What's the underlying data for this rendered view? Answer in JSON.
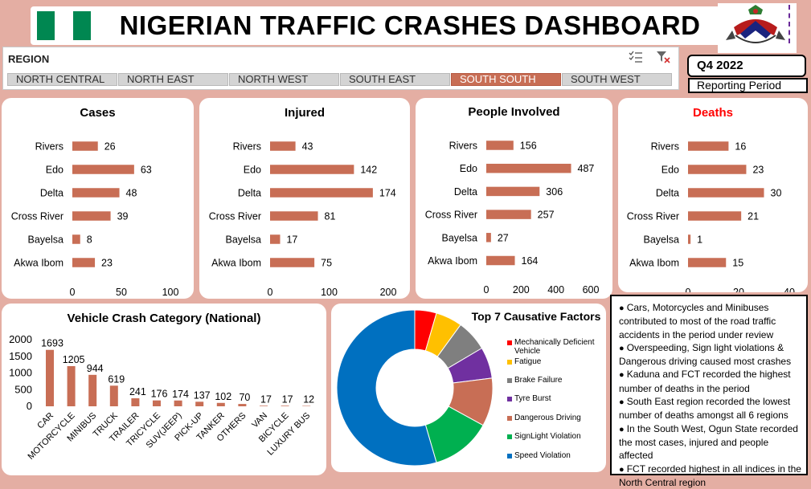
{
  "header": {
    "title": "NIGERIAN TRAFFIC CRASHES DASHBOARD",
    "flag_colors": [
      "#008751",
      "#ffffff",
      "#008751"
    ]
  },
  "slicer": {
    "title": "REGION",
    "icons": [
      "multi-select-icon",
      "clear-filter-icon"
    ],
    "regions": [
      {
        "label": "NORTH CENTRAL",
        "selected": false
      },
      {
        "label": "NORTH EAST",
        "selected": false
      },
      {
        "label": "NORTH WEST",
        "selected": false
      },
      {
        "label": "SOUTH EAST",
        "selected": false
      },
      {
        "label": "SOUTH SOUTH",
        "selected": true
      },
      {
        "label": "SOUTH WEST",
        "selected": false
      }
    ]
  },
  "period": {
    "quarter": "Q4 2022",
    "label": "Reporting Period"
  },
  "colors": {
    "bar": "#c86e55",
    "accent": "#c86e55",
    "deaths_title": "#ff0000"
  },
  "chart_data": [
    {
      "type": "bar",
      "orientation": "horizontal",
      "title": "Cases",
      "categories": [
        "Rivers",
        "Edo",
        "Delta",
        "Cross River",
        "Bayelsa",
        "Akwa Ibom"
      ],
      "values": [
        26,
        63,
        48,
        39,
        8,
        23
      ],
      "xlim": [
        0,
        100
      ],
      "ticks": [
        0,
        50,
        100
      ]
    },
    {
      "type": "bar",
      "orientation": "horizontal",
      "title": "Injured",
      "categories": [
        "Rivers",
        "Edo",
        "Delta",
        "Cross River",
        "Bayelsa",
        "Akwa Ibom"
      ],
      "values": [
        43,
        142,
        174,
        81,
        17,
        75
      ],
      "xlim": [
        0,
        200
      ],
      "ticks": [
        0,
        100,
        200
      ]
    },
    {
      "type": "bar",
      "orientation": "horizontal",
      "title": "People Involved",
      "categories": [
        "Rivers",
        "Edo",
        "Delta",
        "Cross River",
        "Bayelsa",
        "Akwa Ibom"
      ],
      "values": [
        156,
        487,
        306,
        257,
        27,
        164
      ],
      "xlim": [
        0,
        600
      ],
      "ticks": [
        0,
        200,
        400,
        600
      ]
    },
    {
      "type": "bar",
      "orientation": "horizontal",
      "title": "Deaths",
      "categories": [
        "Rivers",
        "Edo",
        "Delta",
        "Cross River",
        "Bayelsa",
        "Akwa Ibom"
      ],
      "values": [
        16,
        23,
        30,
        21,
        1,
        15
      ],
      "xlim": [
        0,
        40
      ],
      "ticks": [
        0,
        20,
        40
      ]
    },
    {
      "type": "bar",
      "orientation": "vertical",
      "title": "Vehicle Crash Category (National)",
      "categories": [
        "CAR",
        "MOTORCYCLE",
        "MINIBUS",
        "TRUCK",
        "TRAILER",
        "TRICYCLE",
        "SUV(JEEP)",
        "PICK-UP",
        "TANKER",
        "OTHERS",
        "VAN",
        "BICYCLE",
        "LUXURY BUS"
      ],
      "values": [
        1693,
        1205,
        944,
        619,
        241,
        176,
        174,
        137,
        102,
        70,
        17,
        17,
        12
      ],
      "ylim": [
        0,
        2000
      ],
      "ticks": [
        0,
        500,
        1000,
        1500,
        2000
      ]
    },
    {
      "type": "pie",
      "donut": true,
      "title": "Top 7 Causative Factors",
      "labels": [
        "Mechanically Deficient Vehicle",
        "Fatigue",
        "Brake Failure",
        "Tyre Burst",
        "Dangerous Driving",
        "SignLight Violation",
        "Speed Violation"
      ],
      "values": [
        4.5,
        5.5,
        6.5,
        6.5,
        10,
        12.5,
        54.5
      ],
      "colors": [
        "#ff0000",
        "#ffc000",
        "#7f7f7f",
        "#7030a0",
        "#c86e55",
        "#00b050",
        "#0070c0"
      ]
    }
  ],
  "insights": [
    "Cars, Motorcycles and Minibuses contributed to most of the road traffic accidents in the period under review",
    "Overspeeding, Sign light violations & Dangerous driving caused most crashes",
    "Kaduna and FCT recorded the highest number of deaths in the period",
    "South East region recorded the lowest number of deaths amongst all 6 regions",
    "In the South West, Ogun State recorded the most cases, injured and people affected",
    "FCT recorded highest in all indices in the North Central region"
  ]
}
